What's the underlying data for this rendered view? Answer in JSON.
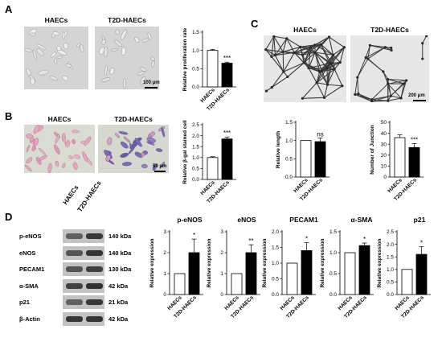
{
  "panels": {
    "A": {
      "label": "A",
      "col1": "HAECs",
      "col2": "T2D-HAECs",
      "scale": "100 μm"
    },
    "B": {
      "label": "B",
      "col1": "HAECs",
      "col2": "T2D-HAECs",
      "scale": "50 μm"
    },
    "C": {
      "label": "C",
      "col1": "HAECs",
      "col2": "T2D-HAECs",
      "scale": "200 μm"
    },
    "D": {
      "label": "D",
      "lane_labels": [
        "HAECs",
        "T2D-HAECs"
      ],
      "blot_rows": [
        {
          "protein": "p-eNOS",
          "kda": "140 kDa"
        },
        {
          "protein": "eNOS",
          "kda": "140 kDa"
        },
        {
          "protein": "PECAM1",
          "kda": "130 kDa"
        },
        {
          "protein": "α-SMA",
          "kda": "42 kDa"
        },
        {
          "protein": "p21",
          "kda": "21 kDa"
        },
        {
          "protein": "β-Actin",
          "kda": "42 kDa"
        }
      ]
    }
  },
  "colors": {
    "control": "#ffffff",
    "treated": "#000000",
    "he_pink": "#e9a9c4",
    "he_blue": "#6a5fb0",
    "bg_gray": "#d6d6d6"
  },
  "chart_data": [
    {
      "id": "prolif",
      "type": "bar",
      "categories": [
        "HAECs",
        "T2D-HAECs"
      ],
      "values": [
        1.0,
        0.65
      ],
      "errors": [
        0.03,
        0.03
      ],
      "ylabel": "Relative proliferation rate",
      "ylim": [
        0,
        1.5
      ],
      "yticks": [
        "0.0",
        "0.5",
        "1.0",
        "1.5"
      ],
      "sig": "***"
    },
    {
      "id": "bgal",
      "type": "bar",
      "categories": [
        "HAECs",
        "T2D-HAECs"
      ],
      "values": [
        1.0,
        1.85
      ],
      "errors": [
        0.04,
        0.09
      ],
      "ylabel": "Relative β-gal stained cell",
      "ylim": [
        0,
        2.5
      ],
      "yticks": [
        "0.0",
        "0.5",
        "1.0",
        "1.5",
        "2.0",
        "2.5"
      ],
      "sig": "***"
    },
    {
      "id": "length",
      "type": "bar",
      "categories": [
        "HAECs",
        "T2D-HAECs"
      ],
      "values": [
        1.0,
        0.97
      ],
      "errors": [
        0.0,
        0.1
      ],
      "ylabel": "Relative length",
      "ylim": [
        0,
        1.5
      ],
      "yticks": [
        "0.0",
        "0.5",
        "1.0",
        "1.5"
      ],
      "sig": "ns"
    },
    {
      "id": "junction",
      "type": "bar",
      "categories": [
        "HAECs",
        "T2D-HAECs"
      ],
      "values": [
        36,
        27
      ],
      "errors": [
        2.5,
        3.5
      ],
      "ylabel": "Number of Junction",
      "ylim": [
        0,
        50
      ],
      "yticks": [
        "0",
        "10",
        "20",
        "30",
        "40",
        "50"
      ],
      "sig": "***"
    },
    {
      "id": "peNOS",
      "type": "bar",
      "title": "p-eNOS",
      "categories": [
        "HAECs",
        "T2D-HAECs"
      ],
      "values": [
        1.0,
        2.0
      ],
      "errors": [
        0.0,
        0.65
      ],
      "ylabel": "Relative expression",
      "ylim": [
        0,
        3
      ],
      "yticks": [
        "0",
        "1",
        "2",
        "3"
      ],
      "sig": "*"
    },
    {
      "id": "eNOS",
      "type": "bar",
      "title": "eNOS",
      "categories": [
        "HAECs",
        "T2D-HAECs"
      ],
      "values": [
        1.0,
        2.0
      ],
      "errors": [
        0.0,
        0.38
      ],
      "ylabel": "Relative expression",
      "ylim": [
        0,
        3
      ],
      "yticks": [
        "0",
        "1",
        "2",
        "3"
      ],
      "sig": "**"
    },
    {
      "id": "PECAM1",
      "type": "bar",
      "title": "PECAM1",
      "categories": [
        "HAECs",
        "T2D-HAECs"
      ],
      "values": [
        1.0,
        1.4
      ],
      "errors": [
        0.0,
        0.25
      ],
      "ylabel": "Relative expression",
      "ylim": [
        0,
        2.0
      ],
      "yticks": [
        "0.0",
        "0.5",
        "1.0",
        "1.5",
        "2.0"
      ],
      "sig": "*"
    },
    {
      "id": "aSMA",
      "type": "bar",
      "title": "α-SMA",
      "categories": [
        "HAECs",
        "T2D-HAECs"
      ],
      "values": [
        1.0,
        1.17
      ],
      "errors": [
        0.0,
        0.06
      ],
      "ylabel": "Relative expression",
      "ylim": [
        0,
        1.5
      ],
      "yticks": [
        "0.0",
        "0.5",
        "1.0",
        "1.5"
      ],
      "sig": "*"
    },
    {
      "id": "p21",
      "type": "bar",
      "title": "p21",
      "categories": [
        "HAECs",
        "T2D-HAECs"
      ],
      "values": [
        1.0,
        1.6
      ],
      "errors": [
        0.0,
        0.3
      ],
      "ylabel": "Relative expression",
      "ylim": [
        0,
        2.5
      ],
      "yticks": [
        "0.0",
        "0.5",
        "1.0",
        "1.5",
        "2.0",
        "2.5"
      ],
      "sig": "*"
    }
  ]
}
